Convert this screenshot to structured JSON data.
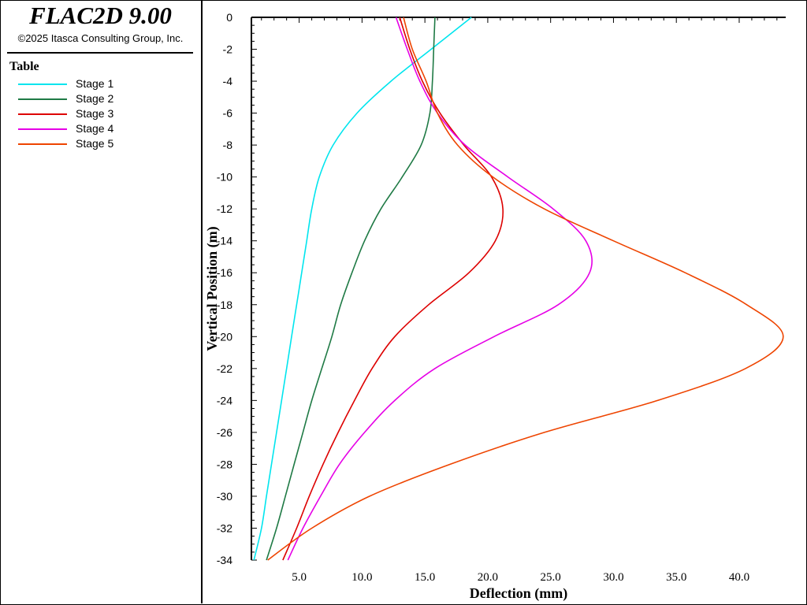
{
  "app": {
    "title": "FLAC2D 9.00",
    "copyright": "©2025 Itasca Consulting Group, Inc."
  },
  "legend": {
    "title": "Table",
    "items": [
      {
        "label": "Stage 1",
        "color": "#00e5ee"
      },
      {
        "label": "Stage 2",
        "color": "#1f7a45"
      },
      {
        "label": "Stage 3",
        "color": "#dd0000"
      },
      {
        "label": "Stage 4",
        "color": "#e600e6"
      },
      {
        "label": "Stage 5",
        "color": "#ee4400"
      }
    ]
  },
  "chart_data": {
    "type": "line",
    "title": "",
    "xlabel": "Deflection (mm)",
    "ylabel": "Vertical Position (m)",
    "xlim": [
      1.2,
      43.7
    ],
    "ylim": [
      -34,
      0
    ],
    "xticks": [
      "5.0",
      "10.0",
      "15.0",
      "20.0",
      "25.0",
      "30.0",
      "35.0",
      "40.0"
    ],
    "yticks": [
      "0",
      "-2",
      "-4",
      "-6",
      "-8",
      "-10",
      "-12",
      "-14",
      "-16",
      "-18",
      "-20",
      "-22",
      "-24",
      "-26",
      "-28",
      "-30",
      "-32",
      "-34"
    ],
    "grid": false,
    "legend_position": "left panel",
    "series": [
      {
        "name": "Stage 1",
        "color": "#00e5ee",
        "points": [
          [
            18.7,
            0
          ],
          [
            15.5,
            -2
          ],
          [
            12.3,
            -4
          ],
          [
            9.6,
            -6
          ],
          [
            7.7,
            -8
          ],
          [
            6.6,
            -10
          ],
          [
            6.0,
            -12
          ],
          [
            5.6,
            -14
          ],
          [
            5.2,
            -16
          ],
          [
            4.8,
            -18
          ],
          [
            4.4,
            -20
          ],
          [
            4.0,
            -22
          ],
          [
            3.6,
            -24
          ],
          [
            3.2,
            -26
          ],
          [
            2.8,
            -28
          ],
          [
            2.4,
            -30
          ],
          [
            2.0,
            -32
          ],
          [
            1.4,
            -34
          ]
        ]
      },
      {
        "name": "Stage 2",
        "color": "#1f7a45",
        "points": [
          [
            15.8,
            0
          ],
          [
            15.7,
            -2
          ],
          [
            15.6,
            -4
          ],
          [
            15.4,
            -6
          ],
          [
            14.7,
            -8
          ],
          [
            13.2,
            -10
          ],
          [
            11.5,
            -12
          ],
          [
            10.2,
            -14
          ],
          [
            9.2,
            -16
          ],
          [
            8.3,
            -18
          ],
          [
            7.6,
            -20
          ],
          [
            6.8,
            -22
          ],
          [
            6.0,
            -24
          ],
          [
            5.3,
            -26
          ],
          [
            4.6,
            -28
          ],
          [
            3.9,
            -30
          ],
          [
            3.2,
            -32
          ],
          [
            2.4,
            -34
          ]
        ]
      },
      {
        "name": "Stage 3",
        "color": "#dd0000",
        "points": [
          [
            13.0,
            0
          ],
          [
            13.8,
            -2
          ],
          [
            14.8,
            -4
          ],
          [
            16.2,
            -6
          ],
          [
            18.1,
            -8
          ],
          [
            20.3,
            -10
          ],
          [
            21.2,
            -12
          ],
          [
            20.6,
            -14
          ],
          [
            18.5,
            -16
          ],
          [
            15.3,
            -18
          ],
          [
            12.6,
            -20
          ],
          [
            10.8,
            -22
          ],
          [
            9.4,
            -24
          ],
          [
            8.1,
            -26
          ],
          [
            6.9,
            -28
          ],
          [
            5.8,
            -30
          ],
          [
            4.8,
            -32
          ],
          [
            3.7,
            -34
          ]
        ]
      },
      {
        "name": "Stage 4",
        "color": "#e600e6",
        "points": [
          [
            12.7,
            0
          ],
          [
            13.6,
            -2
          ],
          [
            14.6,
            -4
          ],
          [
            16.0,
            -6
          ],
          [
            18.2,
            -8
          ],
          [
            21.6,
            -10
          ],
          [
            25.2,
            -12
          ],
          [
            27.8,
            -14
          ],
          [
            28.1,
            -16
          ],
          [
            25.6,
            -18
          ],
          [
            20.5,
            -20
          ],
          [
            15.8,
            -22
          ],
          [
            12.6,
            -24
          ],
          [
            10.2,
            -26
          ],
          [
            8.2,
            -28
          ],
          [
            6.7,
            -30
          ],
          [
            5.3,
            -32
          ],
          [
            4.1,
            -34
          ]
        ]
      },
      {
        "name": "Stage 5",
        "color": "#ee4400",
        "points": [
          [
            13.3,
            0
          ],
          [
            14.0,
            -2
          ],
          [
            15.1,
            -4
          ],
          [
            16.0,
            -6
          ],
          [
            17.6,
            -8
          ],
          [
            20.4,
            -10
          ],
          [
            24.5,
            -12
          ],
          [
            30.0,
            -14
          ],
          [
            35.7,
            -16
          ],
          [
            40.6,
            -18
          ],
          [
            43.5,
            -20
          ],
          [
            40.5,
            -22
          ],
          [
            33.5,
            -24
          ],
          [
            24.5,
            -26
          ],
          [
            17.0,
            -28
          ],
          [
            10.6,
            -30
          ],
          [
            6.0,
            -32
          ],
          [
            2.5,
            -34
          ]
        ]
      }
    ]
  }
}
